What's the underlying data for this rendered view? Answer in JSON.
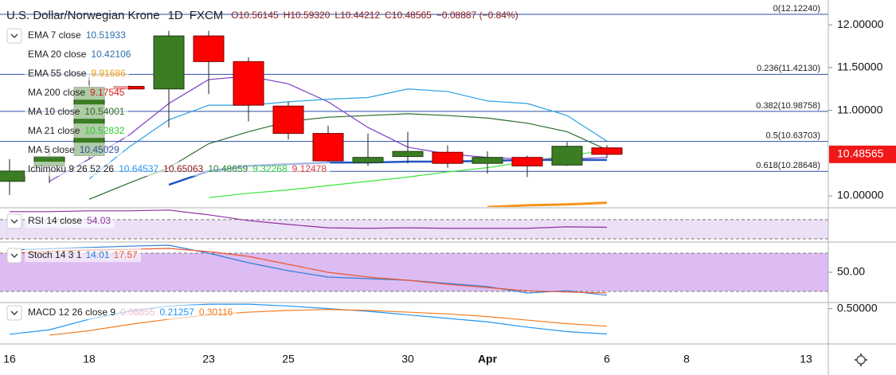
{
  "chart_data": [
    {
      "type": "candlestick",
      "title": "U.S. Dollar/Norwegian Krone",
      "interval": "1D",
      "source": "FXCM",
      "ohlc_labels": [
        "O10.56145",
        "H10.59320",
        "L10.44212",
        "C10.48565"
      ],
      "change": "−0.08887 (−0.84%)",
      "categories": [
        "16",
        null,
        "18",
        null,
        null,
        "23",
        null,
        "25",
        null,
        null,
        "30",
        null,
        "Apr",
        null,
        null,
        "6",
        null,
        "8",
        null,
        null,
        "13"
      ],
      "open": [
        10.17,
        10.35,
        10.47,
        11.28,
        11.25,
        11.87,
        11.57,
        11.05,
        10.73,
        10.39,
        10.46,
        10.51,
        10.38,
        10.45,
        10.36,
        10.56145,
        null,
        null,
        null,
        null,
        null
      ],
      "high": [
        10.43,
        10.57,
        11.4,
        11.29,
        11.93,
        11.93,
        11.62,
        11.1,
        10.82,
        10.73,
        10.75,
        10.59,
        10.52,
        10.47,
        10.63,
        10.5932,
        null,
        null,
        null,
        null,
        null
      ],
      "low": [
        10.01,
        10.15,
        10.43,
        11.24,
        10.8,
        11.19,
        10.87,
        10.66,
        10.38,
        10.35,
        10.38,
        10.33,
        10.26,
        10.22,
        10.35,
        10.44212,
        null,
        null,
        null,
        null,
        null
      ],
      "close": [
        10.29,
        10.46,
        11.27,
        11.25,
        11.87,
        11.57,
        11.06,
        10.73,
        10.41,
        10.45,
        10.52,
        10.38,
        10.45,
        10.35,
        10.58,
        10.48565,
        null,
        null,
        null,
        null,
        null
      ],
      "up_color": "#3b7d23",
      "down_color": "#ff0000",
      "ylim": [
        9.87,
        12.29
      ],
      "yticks": [
        {
          "value": 12,
          "label": "12.00000"
        },
        {
          "value": 11.5,
          "label": "11.50000"
        },
        {
          "value": 11,
          "label": "11.00000"
        },
        {
          "value": 10,
          "label": "10.00000"
        }
      ],
      "last_price": 10.48565,
      "last_price_color": "#f01818",
      "fib_levels": [
        {
          "value": 12.1224,
          "label": "0(12.12240)"
        },
        {
          "value": 11.4213,
          "label": "0.236(11.42130)"
        },
        {
          "value": 10.98758,
          "label": "0.382(10.98758)"
        },
        {
          "value": 10.63703,
          "label": "0.5(10.63703)"
        },
        {
          "value": 10.28648,
          "label": "0.618(10.28648)"
        }
      ],
      "fib_color": "#2a4fa8",
      "indicators": [
        {
          "name": "EMA 7 close",
          "readout": [
            10.51933
          ],
          "colors": [
            "#2c6fb0"
          ]
        },
        {
          "name": "EMA 20 close",
          "readout": [
            10.42106
          ],
          "colors": [
            "#2c6fb0"
          ],
          "line_color": "#2255c4",
          "line": [
            null,
            null,
            null,
            null,
            10.13,
            10.29,
            10.35,
            10.37,
            10.39,
            10.39,
            10.4,
            10.4,
            10.41,
            10.42,
            10.42,
            10.42,
            null,
            null,
            null,
            null,
            null
          ]
        },
        {
          "name": "EMA 55 close",
          "readout": [
            9.91686
          ],
          "colors": [
            "#f39c12"
          ],
          "line_color": "#f7931e",
          "line": [
            null,
            null,
            null,
            null,
            null,
            null,
            null,
            null,
            null,
            null,
            null,
            null,
            9.87,
            9.89,
            9.9,
            9.92,
            null,
            null,
            null,
            null,
            null
          ]
        },
        {
          "name": "MA 200 close",
          "readout": [
            9.17545
          ],
          "colors": [
            "#d42020"
          ]
        },
        {
          "name": "MA 10 close",
          "readout": [
            10.54001
          ],
          "colors": [
            "#2d6a1f"
          ],
          "line_color": "#2e6b2e",
          "line": [
            null,
            null,
            9.96,
            10.15,
            10.33,
            10.61,
            10.75,
            10.87,
            10.92,
            10.94,
            10.96,
            10.94,
            10.91,
            10.85,
            10.75,
            10.54,
            null,
            null,
            null,
            null,
            null
          ]
        },
        {
          "name": "MA 21 close",
          "readout": [
            10.52832
          ],
          "colors": [
            "#2ecc2e"
          ],
          "line_color": "#39e639",
          "line": [
            null,
            null,
            null,
            null,
            null,
            9.98,
            10.03,
            10.07,
            10.12,
            10.17,
            10.22,
            10.28,
            10.33,
            10.4,
            10.47,
            10.53,
            null,
            null,
            null,
            null,
            null
          ]
        },
        {
          "name": "MA 5 close",
          "readout": [
            10.45029
          ],
          "colors": [
            "#3050a0"
          ],
          "line_color": "#7b3fc6",
          "line": [
            null,
            10.17,
            10.43,
            10.71,
            11.08,
            11.36,
            11.4,
            11.31,
            11.1,
            10.8,
            10.57,
            10.49,
            10.45,
            10.43,
            10.43,
            10.45,
            null,
            null,
            null,
            null,
            null
          ]
        },
        {
          "name": "Ichimoku 9 26 52 26",
          "readout": [
            10.64537,
            10.65063,
            10.48659,
            9.32268,
            9.12478
          ],
          "colors": [
            "#2196f3",
            "#8b1a1a",
            "#2e8b2e",
            "#2ecc40",
            "#e53935"
          ],
          "line_color": "#2aa0e6",
          "line": [
            null,
            null,
            10.2,
            10.57,
            10.89,
            11.06,
            11.06,
            11.1,
            11.13,
            11.15,
            11.25,
            11.22,
            11.11,
            11.08,
            10.94,
            10.64,
            null,
            null,
            null,
            null,
            null
          ]
        }
      ]
    },
    {
      "type": "line",
      "title": "RSI 14 close",
      "ylim": [
        25,
        93
      ],
      "band": [
        30,
        70
      ],
      "band_color": "#ece0f6",
      "series": [
        {
          "color": "#8e2fa0",
          "values": [
            86.7,
            86.7,
            88.3,
            88.3,
            90,
            80,
            68,
            60,
            53,
            52,
            53,
            52,
            52,
            52,
            55,
            54.03,
            null,
            null,
            null,
            null,
            null
          ]
        }
      ]
    },
    {
      "type": "line",
      "title": "Stoch 14 3 1",
      "ylim": [
        2.5,
        96.25
      ],
      "band": [
        20,
        80
      ],
      "band_color": "#dcbcf2",
      "yticks": [
        {
          "value": 50,
          "label": "50.00"
        }
      ],
      "series": [
        {
          "color": "#2f7fd8",
          "values": [
            85,
            87,
            89,
            91,
            92.5,
            80,
            65,
            52.5,
            42.5,
            40,
            37.5,
            32.5,
            27.5,
            17.5,
            21,
            14.01,
            null,
            null,
            null,
            null,
            null
          ]
        },
        {
          "color": "#f2552c",
          "values": [
            80,
            83,
            85,
            86,
            87.5,
            82.5,
            75,
            62.5,
            50,
            42.5,
            37.5,
            31,
            26,
            21,
            19,
            17.57,
            null,
            null,
            null,
            null,
            null
          ]
        }
      ]
    },
    {
      "type": "line",
      "title": "MACD 12 26 close 9",
      "ylim": [
        0.1,
        0.56
      ],
      "histogram_readout": 0.08855,
      "histogram_color": "#f3b8c8",
      "yticks": [
        {
          "value": 0.5,
          "label": "0.50000"
        }
      ],
      "series": [
        {
          "color": "#2196f3",
          "values": [
            0.21,
            0.26,
            0.38,
            0.47,
            0.53,
            0.55,
            0.55,
            0.53,
            0.5,
            0.47,
            0.43,
            0.39,
            0.35,
            0.29,
            0.24,
            0.21257,
            null,
            null,
            null,
            null,
            null
          ]
        },
        {
          "color": "#f57c1f",
          "values": [
            null,
            0.2,
            0.25,
            0.32,
            0.38,
            0.43,
            0.46,
            0.48,
            0.49,
            0.48,
            0.46,
            0.44,
            0.41,
            0.37,
            0.33,
            0.30116,
            null,
            null,
            null,
            null,
            null
          ]
        }
      ]
    }
  ]
}
